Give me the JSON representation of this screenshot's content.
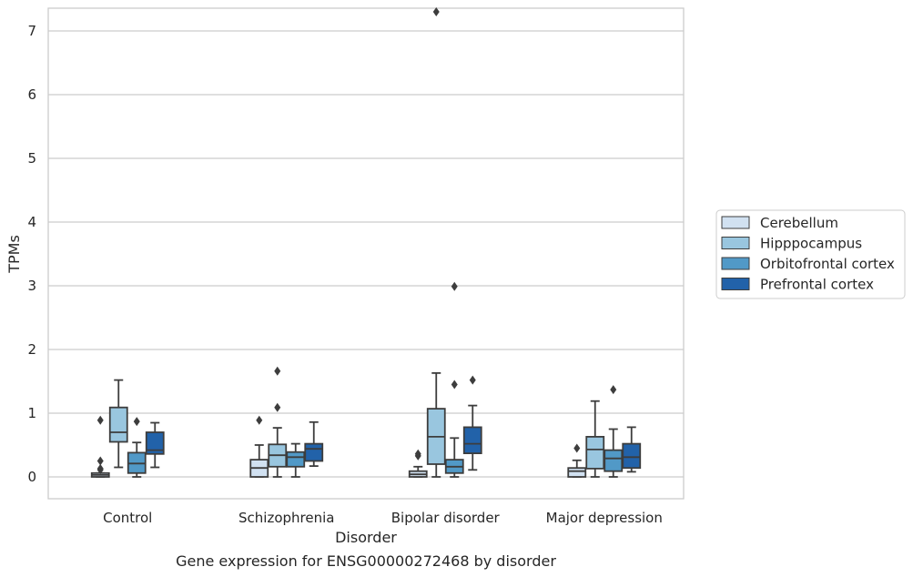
{
  "chart_data": {
    "type": "box",
    "title": "Gene expression for ENSG00000272468 by disorder",
    "xlabel": "Disorder",
    "ylabel": "TPMs",
    "ylim": [
      -0.35,
      7.7
    ],
    "yticks": [
      0,
      1,
      2,
      3,
      4,
      5,
      6,
      7
    ],
    "grid": "horizontal",
    "legend_position": "right",
    "categories": [
      "Control",
      "Schizophrenia",
      "Bipolar disorder",
      "Major depression"
    ],
    "series": [
      {
        "name": "Cerebellum",
        "color": "#d1e1f1",
        "boxes": [
          {
            "q1": 0.0,
            "median": 0.03,
            "q3": 0.06,
            "whisker_low": 0.0,
            "whisker_high": 0.06,
            "outliers": [
              0.11,
              0.13,
              0.25,
              0.89
            ]
          },
          {
            "q1": 0.0,
            "median": 0.14,
            "q3": 0.27,
            "whisker_low": 0.0,
            "whisker_high": 0.5,
            "outliers": [
              0.89
            ]
          },
          {
            "q1": 0.0,
            "median": 0.04,
            "q3": 0.09,
            "whisker_low": 0.0,
            "whisker_high": 0.16,
            "outliers": [
              0.33,
              0.36
            ]
          },
          {
            "q1": 0.0,
            "median": 0.09,
            "q3": 0.14,
            "whisker_low": 0.0,
            "whisker_high": 0.26,
            "outliers": [
              0.45
            ]
          }
        ]
      },
      {
        "name": "Hipppocampus",
        "color": "#99c6df",
        "boxes": [
          {
            "q1": 0.55,
            "median": 0.7,
            "q3": 1.09,
            "whisker_low": 0.15,
            "whisker_high": 1.52,
            "outliers": []
          },
          {
            "q1": 0.16,
            "median": 0.34,
            "q3": 0.51,
            "whisker_low": 0.0,
            "whisker_high": 0.77,
            "outliers": [
              1.09,
              1.66
            ]
          },
          {
            "q1": 0.2,
            "median": 0.63,
            "q3": 1.07,
            "whisker_low": 0.0,
            "whisker_high": 1.63,
            "outliers": [
              7.3
            ]
          },
          {
            "q1": 0.13,
            "median": 0.43,
            "q3": 0.63,
            "whisker_low": 0.0,
            "whisker_high": 1.19,
            "outliers": []
          }
        ]
      },
      {
        "name": "Orbitofrontal cortex",
        "color": "#5199c7",
        "boxes": [
          {
            "q1": 0.06,
            "median": 0.21,
            "q3": 0.38,
            "whisker_low": 0.0,
            "whisker_high": 0.54,
            "outliers": [
              0.87
            ]
          },
          {
            "q1": 0.16,
            "median": 0.31,
            "q3": 0.39,
            "whisker_low": 0.0,
            "whisker_high": 0.52,
            "outliers": []
          },
          {
            "q1": 0.06,
            "median": 0.16,
            "q3": 0.27,
            "whisker_low": 0.0,
            "whisker_high": 0.61,
            "outliers": [
              1.45,
              2.99
            ]
          },
          {
            "q1": 0.09,
            "median": 0.29,
            "q3": 0.42,
            "whisker_low": 0.0,
            "whisker_high": 0.75,
            "outliers": [
              1.37
            ]
          }
        ]
      },
      {
        "name": "Prefrontal cortex",
        "color": "#2262a9",
        "boxes": [
          {
            "q1": 0.36,
            "median": 0.42,
            "q3": 0.7,
            "whisker_low": 0.15,
            "whisker_high": 0.85,
            "outliers": []
          },
          {
            "q1": 0.25,
            "median": 0.44,
            "q3": 0.52,
            "whisker_low": 0.17,
            "whisker_high": 0.86,
            "outliers": []
          },
          {
            "q1": 0.37,
            "median": 0.52,
            "q3": 0.78,
            "whisker_low": 0.11,
            "whisker_high": 1.12,
            "outliers": [
              1.52
            ]
          },
          {
            "q1": 0.14,
            "median": 0.31,
            "q3": 0.52,
            "whisker_low": 0.08,
            "whisker_high": 0.78,
            "outliers": []
          }
        ]
      }
    ]
  }
}
